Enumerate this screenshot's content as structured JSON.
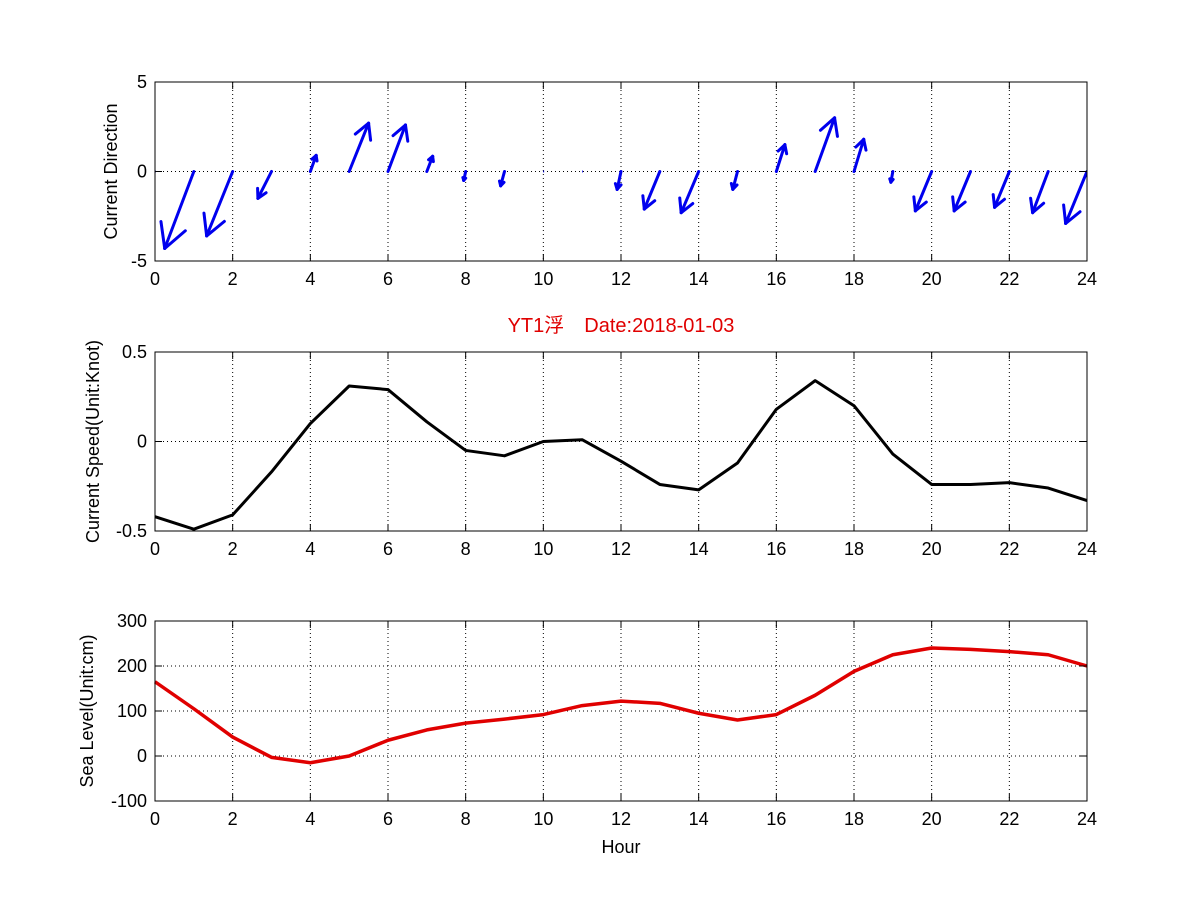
{
  "chart_data": [
    {
      "type": "quiver",
      "ylabel": "Current Direction",
      "xlim": [
        0,
        24
      ],
      "ylim": [
        -5,
        5
      ],
      "xticks": [
        "0",
        "2",
        "4",
        "6",
        "8",
        "10",
        "12",
        "14",
        "16",
        "18",
        "20",
        "22",
        "24"
      ],
      "yticks": [
        "-5",
        "0",
        "5"
      ],
      "grid": true,
      "arrow_color": "#0000ee",
      "x": [
        0,
        1,
        2,
        3,
        4,
        5,
        6,
        7,
        8,
        9,
        10,
        11,
        12,
        13,
        14,
        15,
        16,
        17,
        18,
        19,
        20,
        21,
        22,
        23,
        24
      ],
      "u": [
        0.0,
        -0.75,
        -0.67,
        -0.35,
        0.15,
        0.5,
        0.45,
        0.15,
        -0.05,
        -0.1,
        0.0,
        0.02,
        -0.1,
        -0.4,
        -0.45,
        -0.12,
        0.22,
        0.5,
        0.25,
        -0.05,
        -0.42,
        -0.42,
        -0.38,
        -0.4,
        -0.55
      ],
      "v": [
        0.0,
        -4.3,
        -3.6,
        -1.5,
        0.9,
        2.7,
        2.6,
        0.85,
        -0.5,
        -0.8,
        -0.05,
        0.0,
        -1.0,
        -2.1,
        -2.3,
        -1.0,
        1.5,
        3.0,
        1.8,
        -0.6,
        -2.2,
        -2.2,
        -2.0,
        -2.3,
        -2.9
      ]
    },
    {
      "type": "line",
      "title": "YT1浮　Date:2018-01-03",
      "ylabel": "Current Speed(Unit:Knot)",
      "xlim": [
        0,
        24
      ],
      "ylim": [
        -0.5,
        0.5
      ],
      "xticks": [
        "0",
        "2",
        "4",
        "6",
        "8",
        "10",
        "12",
        "14",
        "16",
        "18",
        "20",
        "22",
        "24"
      ],
      "yticks": [
        "-0.5",
        "0",
        "0.5"
      ],
      "grid": true,
      "line_color": "#000000",
      "x": [
        0,
        1,
        2,
        3,
        4,
        5,
        6,
        7,
        8,
        9,
        10,
        11,
        12,
        13,
        14,
        15,
        16,
        17,
        18,
        19,
        20,
        21,
        22,
        23,
        24
      ],
      "y": [
        -0.42,
        -0.49,
        -0.41,
        -0.17,
        0.1,
        0.31,
        0.29,
        0.11,
        -0.05,
        -0.08,
        0.0,
        0.01,
        -0.11,
        -0.24,
        -0.27,
        -0.12,
        0.18,
        0.34,
        0.2,
        -0.07,
        -0.24,
        -0.24,
        -0.23,
        -0.26,
        -0.33
      ]
    },
    {
      "type": "line",
      "xlabel": "Hour",
      "ylabel": "Sea Level(Unit:cm)",
      "xlim": [
        0,
        24
      ],
      "ylim": [
        -100,
        300
      ],
      "xticks": [
        "0",
        "2",
        "4",
        "6",
        "8",
        "10",
        "12",
        "14",
        "16",
        "18",
        "20",
        "22",
        "24"
      ],
      "yticks": [
        "-100",
        "0",
        "100",
        "200",
        "300"
      ],
      "grid": true,
      "line_color": "#e00000",
      "x": [
        0,
        1,
        2,
        3,
        4,
        5,
        6,
        7,
        8,
        9,
        10,
        11,
        12,
        13,
        14,
        15,
        16,
        17,
        18,
        19,
        20,
        21,
        22,
        23,
        24
      ],
      "y": [
        165,
        105,
        42,
        -3,
        -15,
        0,
        35,
        58,
        73,
        82,
        92,
        112,
        122,
        117,
        95,
        80,
        92,
        135,
        188,
        225,
        240,
        237,
        232,
        225,
        200
      ]
    }
  ]
}
